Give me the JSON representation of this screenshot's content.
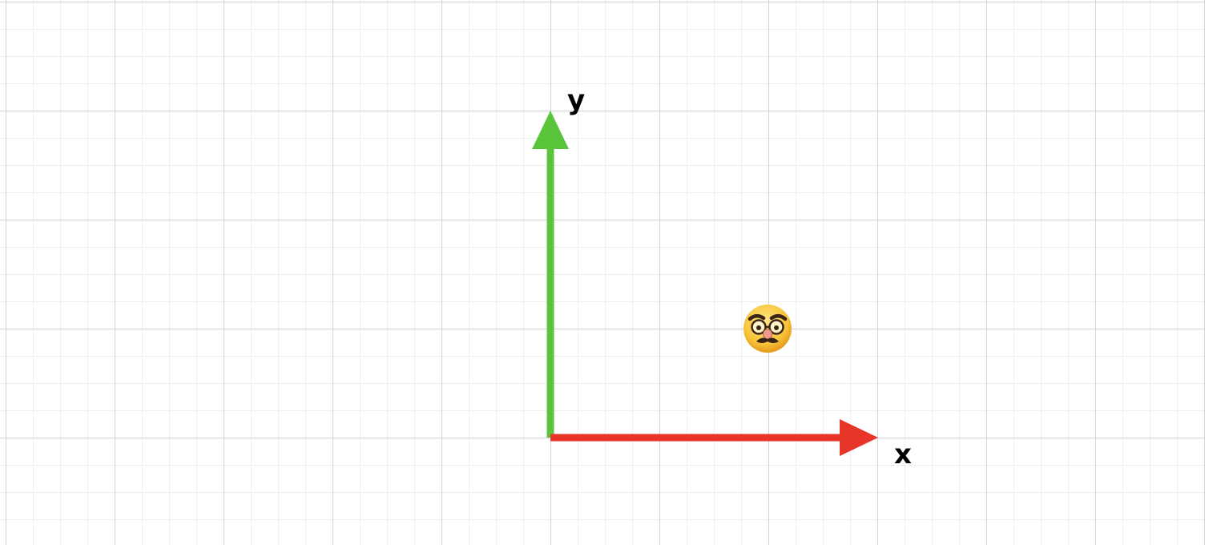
{
  "diagram": {
    "x_axis_label": "x",
    "y_axis_label": "y",
    "colors": {
      "x_axis": "#e8352a",
      "y_axis": "#5ac53b",
      "grid_major": "#d3d3d3",
      "grid_minor": "#eeeeee"
    },
    "point_icon": "disguised-face-icon"
  }
}
